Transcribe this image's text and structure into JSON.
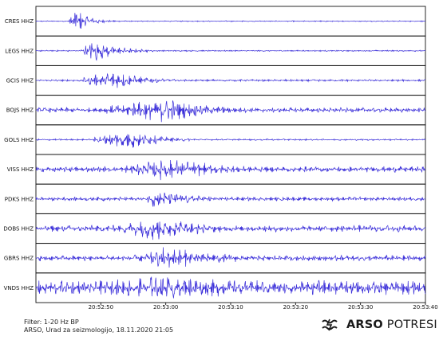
{
  "chart_data": {
    "type": "line",
    "x_time_range": [
      "20:52:40",
      "20:53:40"
    ],
    "x_tick_labels": [
      "20:52:50",
      "20:53:00",
      "20:53:10",
      "20:53:20",
      "20:53:30",
      "20:53:40"
    ],
    "line_color": "#3b2fd9",
    "grid": false,
    "series": [
      {
        "name": "CRES HHZ",
        "p_arrival": "20:52:45",
        "peak": "20:52:46",
        "duration_s": 5,
        "noise": 0.04,
        "peak_amp": 1.0
      },
      {
        "name": "LEGS HHZ",
        "p_arrival": "20:52:47",
        "peak": "20:52:49",
        "duration_s": 8,
        "noise": 0.05,
        "peak_amp": 0.9
      },
      {
        "name": "GCIS HHZ",
        "p_arrival": "20:52:47",
        "peak": "20:52:52",
        "duration_s": 10,
        "noise": 0.08,
        "peak_amp": 0.75
      },
      {
        "name": "BOJS HHZ",
        "p_arrival": "20:52:50",
        "peak": "20:53:00",
        "duration_s": 16,
        "noise": 0.18,
        "peak_amp": 1.0
      },
      {
        "name": "GOLS HHZ",
        "p_arrival": "20:52:49",
        "peak": "20:52:54",
        "duration_s": 10,
        "noise": 0.06,
        "peak_amp": 0.85
      },
      {
        "name": "VISS HHZ",
        "p_arrival": "20:52:53",
        "peak": "20:53:00",
        "duration_s": 20,
        "noise": 0.22,
        "peak_amp": 0.9
      },
      {
        "name": "PDKS HHZ",
        "p_arrival": "20:52:57",
        "peak": "20:52:58",
        "duration_s": 16,
        "noise": 0.15,
        "peak_amp": 0.7
      },
      {
        "name": "DOBS HHZ",
        "p_arrival": "20:52:53",
        "peak": "20:52:58",
        "duration_s": 18,
        "noise": 0.25,
        "peak_amp": 1.0
      },
      {
        "name": "GBRS HHZ",
        "p_arrival": "20:52:55",
        "peak": "20:53:00",
        "duration_s": 22,
        "noise": 0.22,
        "peak_amp": 0.85
      },
      {
        "name": "VNDS HHZ",
        "p_arrival": "20:52:45",
        "peak": "20:53:00",
        "duration_s": 40,
        "noise": 0.55,
        "peak_amp": 1.0
      }
    ]
  },
  "footer": {
    "filter": "Filter: 1-20 Hz BP",
    "credit": "ARSO, Urad za seizmologijo, 18.11.2020  21:05"
  },
  "brand": {
    "bold": "ARSO",
    "rest": " POTRESI"
  }
}
